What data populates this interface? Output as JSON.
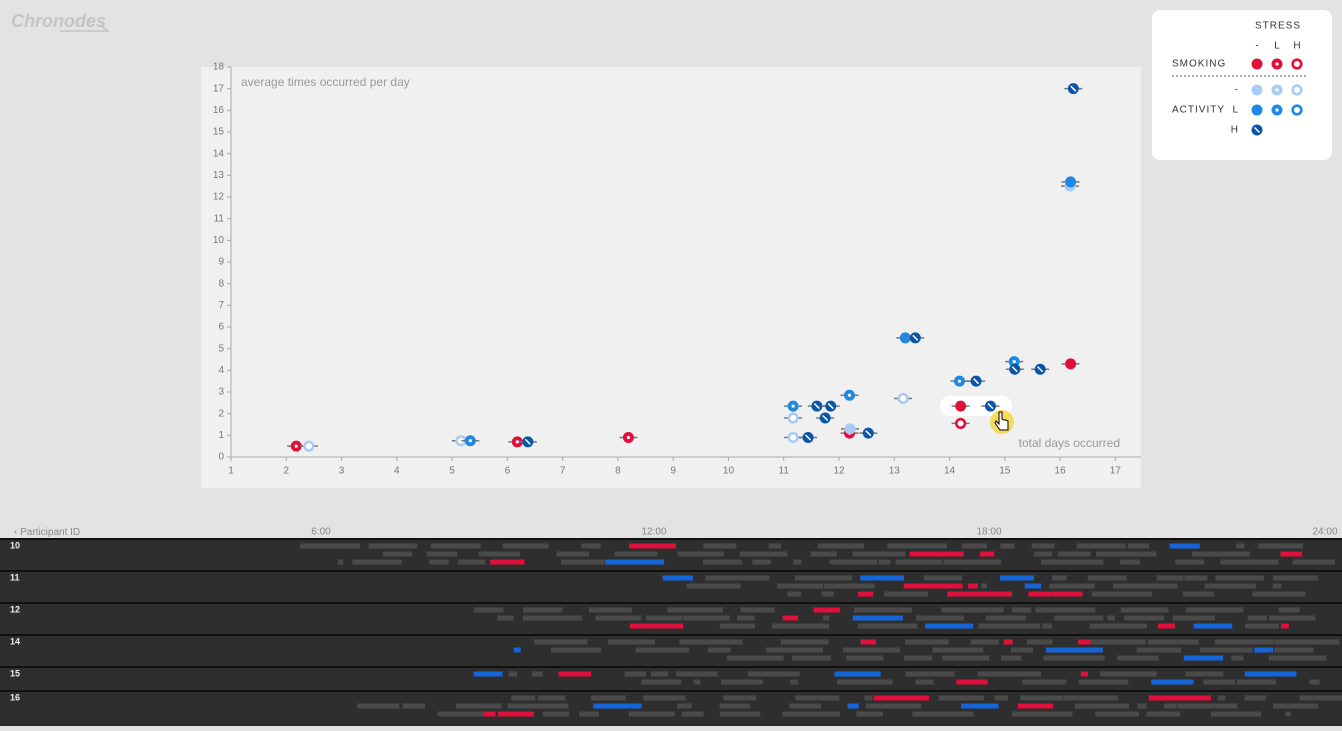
{
  "app": {
    "logo": "Chronodes"
  },
  "legend": {
    "stress_title": "STRESS",
    "stress_levels": [
      "-",
      "L",
      "H"
    ],
    "smoking": "SMOKING",
    "activity": "ACTIVITY",
    "activity_levels": [
      "-",
      "L",
      "H"
    ]
  },
  "chart_data": {
    "type": "scatter",
    "y_label": "average times occurred per day",
    "x_label": "total days occurred",
    "xlim": [
      1,
      17.5
    ],
    "ylim": [
      0,
      18
    ],
    "xticks": [
      1,
      2,
      3,
      4,
      5,
      6,
      7,
      8,
      9,
      10,
      11,
      12,
      13,
      14,
      15,
      16,
      17
    ],
    "yticks": [
      0,
      1,
      2,
      3,
      4,
      5,
      6,
      7,
      8,
      9,
      10,
      11,
      12,
      13,
      14,
      15,
      16,
      17,
      18
    ],
    "series": [
      {
        "color": "#e0103a",
        "marker": "dot",
        "x": [
          2.18,
          6.18,
          8.19,
          12.19
        ],
        "values": [
          0.5,
          0.7,
          0.9,
          1.1
        ]
      },
      {
        "color": "#e0103a",
        "marker": "filled",
        "x": [
          14.2,
          16.19
        ],
        "values": [
          2.35,
          4.3
        ]
      },
      {
        "color": "#e0103a",
        "marker": "ring",
        "x": [
          14.2
        ],
        "values": [
          1.55
        ]
      },
      {
        "color": "#a8ccf5",
        "marker": "filled",
        "x": [
          16.18,
          12.2
        ],
        "values": [
          12.5,
          1.3
        ]
      },
      {
        "color": "#a8ccf5",
        "marker": "ring",
        "x": [
          2.41,
          5.16,
          13.16,
          11.17,
          11.17
        ],
        "values": [
          0.5,
          0.75,
          2.7,
          1.8,
          0.9
        ]
      },
      {
        "color": "#1e88e5",
        "marker": "filled",
        "x": [
          13.2,
          16.19
        ],
        "values": [
          5.5,
          12.7
        ]
      },
      {
        "color": "#1e88e5",
        "marker": "dot",
        "x": [
          5.33,
          11.17,
          12.19,
          14.18,
          15.17
        ],
        "values": [
          0.75,
          2.35,
          2.85,
          3.5,
          4.4
        ]
      },
      {
        "color": "#0a55a8",
        "marker": "slash",
        "x": [
          6.37,
          11.44,
          11.75,
          12.53,
          13.38,
          14.48,
          14.74,
          15.18,
          15.64,
          11.6,
          11.85,
          16.24
        ],
        "values": [
          0.7,
          0.9,
          1.8,
          1.1,
          5.5,
          3.5,
          2.35,
          4.05,
          4.05,
          2.35,
          2.35,
          17
        ]
      }
    ]
  },
  "timeline": {
    "axis_label": "Participant ID",
    "time_ticks": [
      "6:00",
      "12:00",
      "18:00",
      "24:00"
    ],
    "participants": [
      "10",
      "11",
      "12",
      "14",
      "15",
      "16"
    ]
  }
}
